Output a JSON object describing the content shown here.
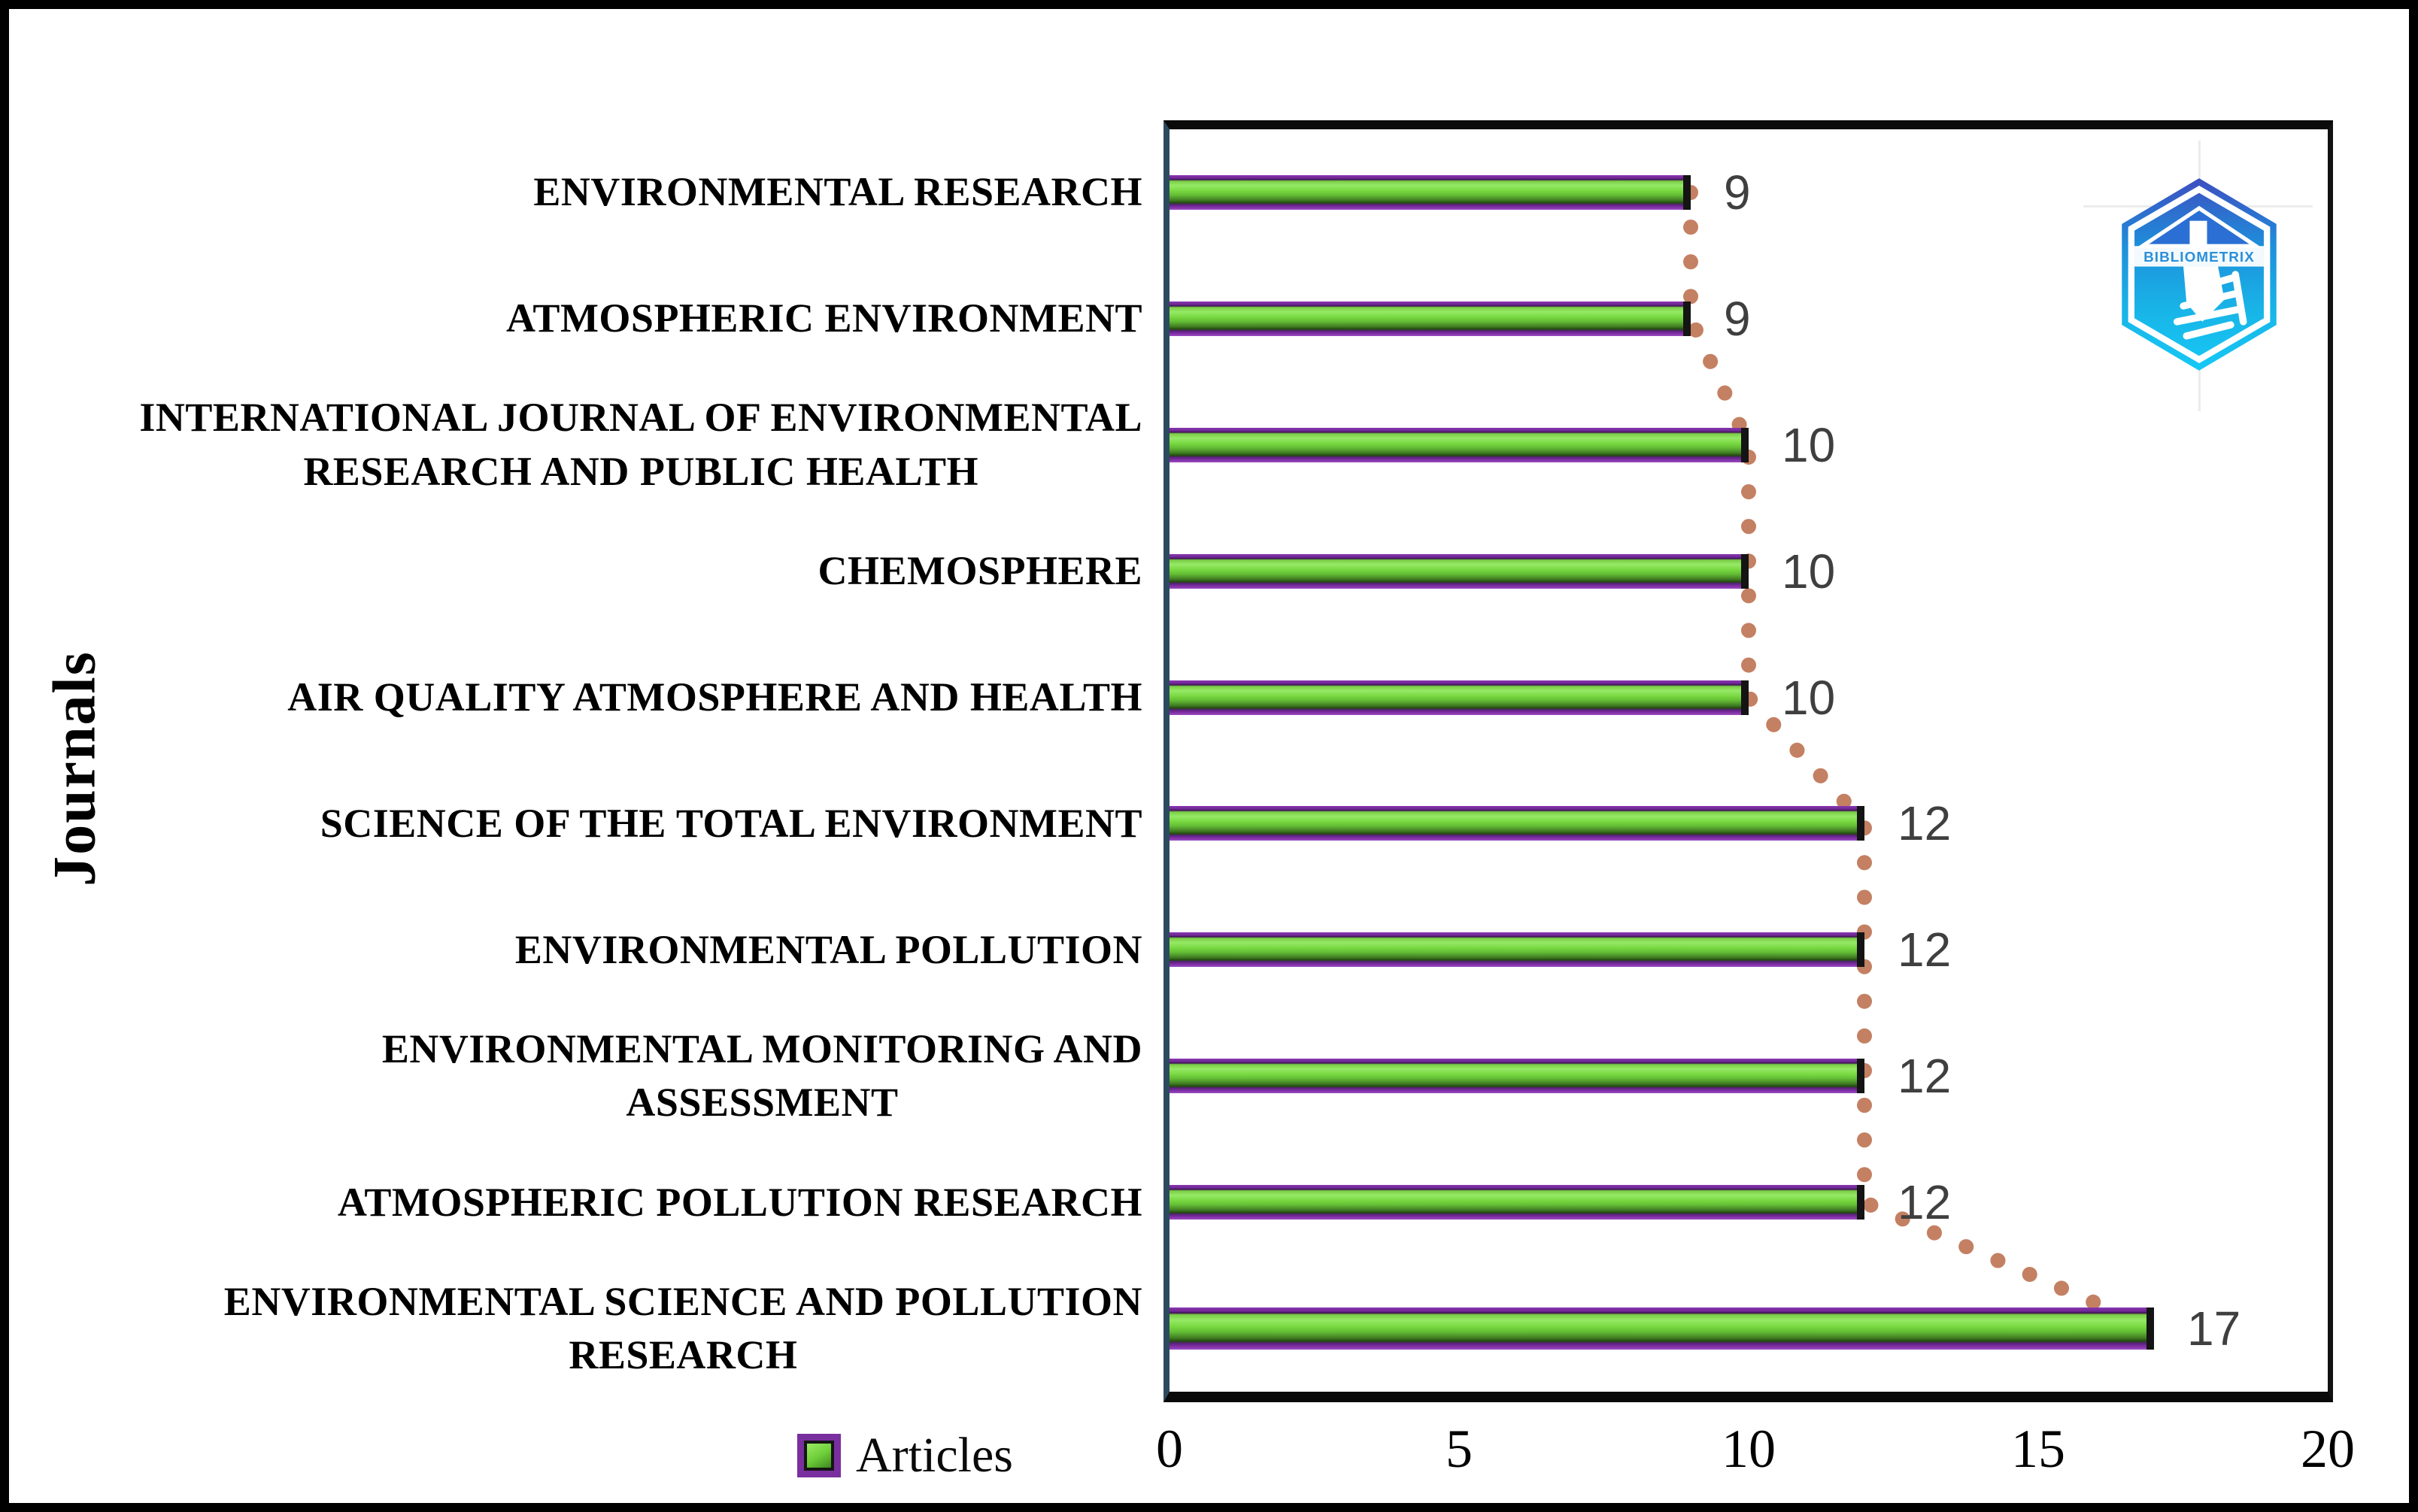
{
  "chart_data": {
    "type": "bar",
    "orientation": "horizontal",
    "title": "",
    "ylabel": "Journals",
    "xlabel": "",
    "categories": [
      "ENVIRONMENTAL RESEARCH",
      "ATMOSPHERIC ENVIRONMENT",
      "INTERNATIONAL JOURNAL OF ENVIRONMENTAL\nRESEARCH AND PUBLIC HEALTH",
      "CHEMOSPHERE",
      "AIR QUALITY ATMOSPHERE AND HEALTH",
      "SCIENCE OF THE TOTAL ENVIRONMENT",
      "ENVIRONMENTAL POLLUTION",
      "ENVIRONMENTAL MONITORING AND\nASSESSMENT",
      "ATMOSPHERIC POLLUTION RESEARCH",
      "ENVIRONMENTAL SCIENCE AND POLLUTION\nRESEARCH"
    ],
    "series": [
      {
        "name": "Articles",
        "values": [
          9,
          9,
          10,
          10,
          10,
          12,
          12,
          12,
          12,
          17
        ]
      }
    ],
    "data_labels": [
      "9",
      "9",
      "10",
      "10",
      "10",
      "12",
      "12",
      "12",
      "12",
      "17"
    ],
    "xticks": [
      "0",
      "5",
      "10",
      "15",
      "20"
    ],
    "xtick_values": [
      0,
      5,
      10,
      15,
      20
    ],
    "xlim": [
      0,
      20
    ],
    "grid": "off",
    "legend": {
      "position": "bottom-left",
      "entries": [
        {
          "label": "Articles",
          "swatch": "green fill with purple border"
        }
      ]
    },
    "trendline": {
      "style": "dotted",
      "color": "#C1795A",
      "follows": "bar tips"
    },
    "colors": {
      "bar_fill": "#6FD03A",
      "bar_border": "#7A2F9E",
      "bar_end_cap": "#141414",
      "value_label": "#3F3F3F",
      "axis_text": "#000000",
      "plot_left_border": "#2E4A5E",
      "plot_border": "#000000"
    }
  },
  "logo": {
    "name": "bibliometrix-logo",
    "text": "BIBLIOMETRIX",
    "shape": "hexagon",
    "color_top": "#3D4EC0",
    "color_bottom": "#16C8F5"
  }
}
